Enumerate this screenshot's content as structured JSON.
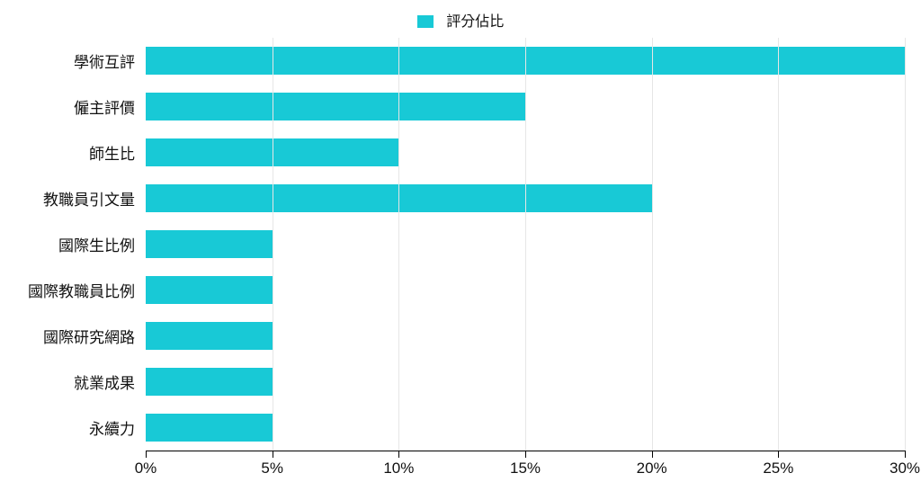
{
  "chart": {
    "type": "bar-horizontal",
    "legend": {
      "label": "評分佔比",
      "swatch_color": "#18c9d6"
    },
    "bar_color": "#18c9d6",
    "background_color": "#ffffff",
    "grid_color": "#e6e6e6",
    "axis_color": "#000000",
    "text_color": "#111111",
    "label_fontsize": 17,
    "legend_fontsize": 16,
    "x": {
      "min": 0,
      "max": 30,
      "tick_step": 5,
      "unit_suffix": "%"
    },
    "x_ticks": [
      {
        "value": 0,
        "label": "0%"
      },
      {
        "value": 5,
        "label": "5%"
      },
      {
        "value": 10,
        "label": "10%"
      },
      {
        "value": 15,
        "label": "15%"
      },
      {
        "value": 20,
        "label": "20%"
      },
      {
        "value": 25,
        "label": "25%"
      },
      {
        "value": 30,
        "label": "30%"
      }
    ],
    "categories": [
      {
        "label": "學術互評",
        "value": 30
      },
      {
        "label": "僱主評價",
        "value": 15
      },
      {
        "label": "師生比",
        "value": 10
      },
      {
        "label": "教職員引文量",
        "value": 20
      },
      {
        "label": "國際生比例",
        "value": 5
      },
      {
        "label": "國際教職員比例",
        "value": 5
      },
      {
        "label": "國際研究網路",
        "value": 5
      },
      {
        "label": "就業成果",
        "value": 5
      },
      {
        "label": "永續力",
        "value": 5
      }
    ]
  }
}
